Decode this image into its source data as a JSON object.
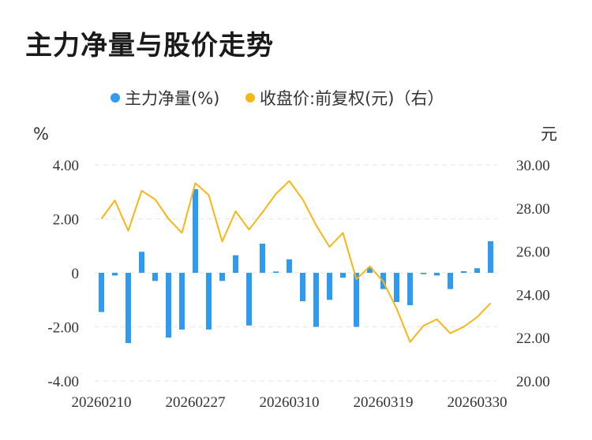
{
  "page_title": "主力净量与股价走势",
  "chart_data": {
    "type": "bar+line",
    "legend": [
      {
        "label": "主力净量(%)",
        "color": "#2e9bf0"
      },
      {
        "label": "收盘价:前复权(元)（右）",
        "color": "#f5b715"
      }
    ],
    "left_unit": "%",
    "right_unit": "元",
    "left_ticks": [
      "4.00",
      "2.00",
      "0",
      "-2.00",
      "-4.00"
    ],
    "right_ticks": [
      "30.00",
      "28.00",
      "26.00",
      "24.00",
      "22.00",
      "20.00"
    ],
    "left_range": [
      -4,
      4
    ],
    "right_range": [
      20,
      30
    ],
    "x_tick_labels": [
      {
        "label": "20260210",
        "index": 0
      },
      {
        "label": "20260227",
        "index": 7
      },
      {
        "label": "20260310",
        "index": 14
      },
      {
        "label": "20260319",
        "index": 21
      },
      {
        "label": "20260330",
        "index": 28
      }
    ],
    "bar_color": "#2e9bf0",
    "line_color": "#f5b715",
    "grid": true,
    "series": [
      {
        "name": "主力净量(%)",
        "values": [
          -1.45,
          -0.1,
          -2.6,
          0.78,
          -0.3,
          -2.4,
          -2.1,
          3.1,
          -2.1,
          -0.3,
          0.65,
          -1.95,
          1.08,
          0.05,
          0.5,
          -1.05,
          -2.0,
          -1.0,
          -0.18,
          -2.0,
          0.2,
          -0.6,
          -1.08,
          -1.2,
          -0.05,
          -0.1,
          -0.6,
          0.06,
          0.17,
          1.17
        ]
      },
      {
        "name": "收盘价:前复权(元)（右）",
        "values": [
          27.5,
          28.35,
          26.95,
          28.8,
          28.4,
          27.5,
          26.85,
          29.15,
          28.6,
          26.45,
          27.85,
          27.0,
          27.8,
          28.65,
          29.25,
          28.4,
          27.2,
          26.2,
          26.85,
          24.7,
          25.3,
          24.6,
          23.35,
          21.8,
          22.55,
          22.85,
          22.2,
          22.5,
          22.95,
          23.6
        ]
      }
    ]
  }
}
